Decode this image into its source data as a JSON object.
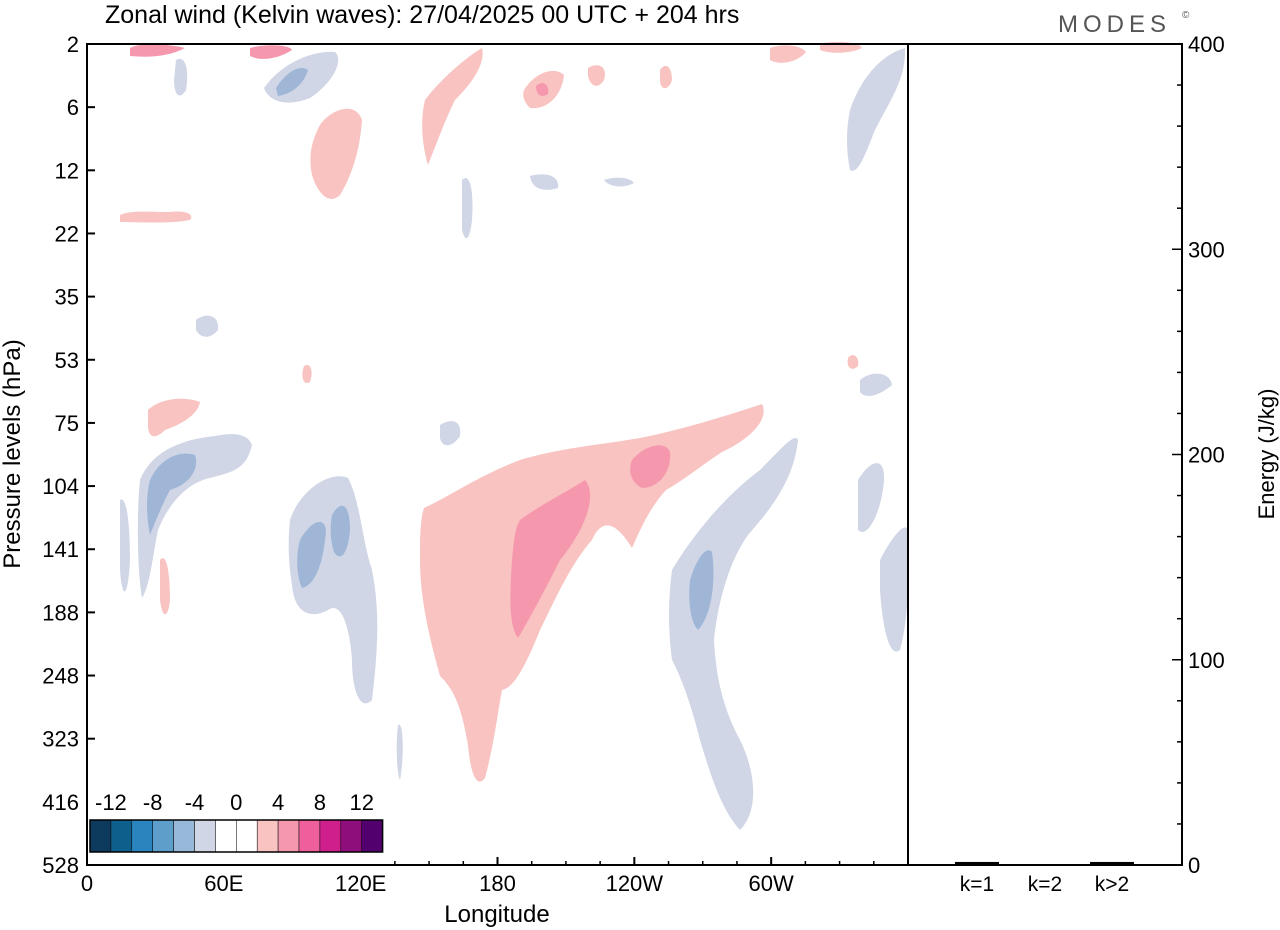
{
  "chart_data": {
    "type": "heatmap",
    "title": "Zonal wind (Kelvin waves):  27/04/2025  00 UTC  + 204 hrs",
    "logo": "MODES",
    "logo_mark": "©",
    "xlabel": "Longitude",
    "ylabel": "Pressure levels (hPa)",
    "x_ticks": [
      "0",
      "60E",
      "120E",
      "180",
      "120W",
      "60W"
    ],
    "y_levels": [
      "2",
      "6",
      "12",
      "22",
      "35",
      "53",
      "75",
      "104",
      "141",
      "188",
      "248",
      "323",
      "416",
      "528"
    ],
    "y_scale": "categorical pressure levels, top to bottom",
    "legend": {
      "placement": "bottom-left",
      "labels": [
        "-12",
        "-8",
        "-4",
        "0",
        "4",
        "8",
        "12"
      ],
      "colors": [
        "#0d3b5e",
        "#0f5f8c",
        "#2a84bd",
        "#5d9fca",
        "#98b8d9",
        "#d0d6e6",
        "#ffffff",
        "#ffffff",
        "#f8c3c0",
        "#f598ae",
        "#ef5f9c",
        "#cf1f8c",
        "#8e0f7c",
        "#52006e"
      ]
    },
    "colors": {
      "positive": "#f8c3c0",
      "positive_strong": "#f598ae",
      "negative": "#d0d6e6",
      "negative_strong": "#9fb6d6"
    },
    "energy_panel": {
      "ylabel": "Energy (J/kg)",
      "ylim": [
        0,
        400
      ],
      "y_ticks": [
        "0",
        "100",
        "200",
        "300",
        "400"
      ],
      "categories": [
        "k=1",
        "k=2",
        "k>2"
      ],
      "values": [
        1,
        0,
        1
      ]
    }
  }
}
